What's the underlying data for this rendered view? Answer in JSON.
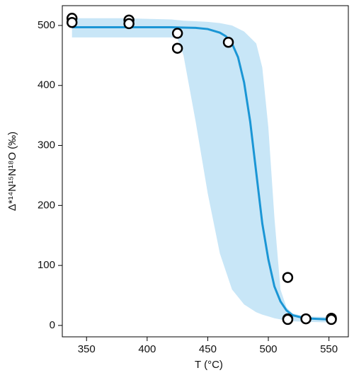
{
  "chart_data": {
    "type": "scatter",
    "xlabel": "T (°C)",
    "ylabel": "Δ*¹⁴N¹⁵N¹⁸O (‰)",
    "xlim": [
      330,
      566
    ],
    "ylim": [
      -19,
      533
    ],
    "xticks": [
      350,
      400,
      450,
      500,
      550
    ],
    "yticks": [
      0,
      100,
      200,
      300,
      400,
      500
    ],
    "points": {
      "x": [
        338,
        338,
        385,
        385,
        425,
        425,
        467,
        516,
        516,
        516,
        531,
        552,
        552
      ],
      "y": [
        512,
        505,
        509,
        503,
        487,
        462,
        472,
        80,
        11,
        10,
        11,
        12,
        10
      ]
    },
    "curve": {
      "color": "#1b96d5",
      "x": [
        338,
        360,
        380,
        400,
        420,
        440,
        450,
        460,
        465,
        470,
        475,
        480,
        485,
        490,
        495,
        500,
        505,
        510,
        515,
        520,
        530,
        540,
        550,
        555
      ],
      "y": [
        497,
        497,
        497,
        497,
        497,
        496,
        494,
        488,
        482,
        470,
        447,
        405,
        340,
        255,
        170,
        110,
        65,
        40,
        25,
        17,
        12,
        11,
        10,
        10
      ]
    },
    "band": {
      "color": "#c8e6f7",
      "x": [
        338,
        380,
        420,
        425,
        430,
        440,
        450,
        460,
        470,
        480,
        490,
        495,
        500,
        505,
        510,
        515,
        520,
        530,
        550
      ],
      "upper": [
        512,
        512,
        510,
        509,
        508,
        507,
        506,
        504,
        500,
        490,
        470,
        430,
        330,
        180,
        60,
        30,
        20,
        15,
        14
      ],
      "lower": [
        480,
        480,
        480,
        478,
        450,
        340,
        220,
        120,
        60,
        35,
        22,
        18,
        15,
        12,
        10,
        8,
        7,
        6,
        5
      ]
    }
  }
}
